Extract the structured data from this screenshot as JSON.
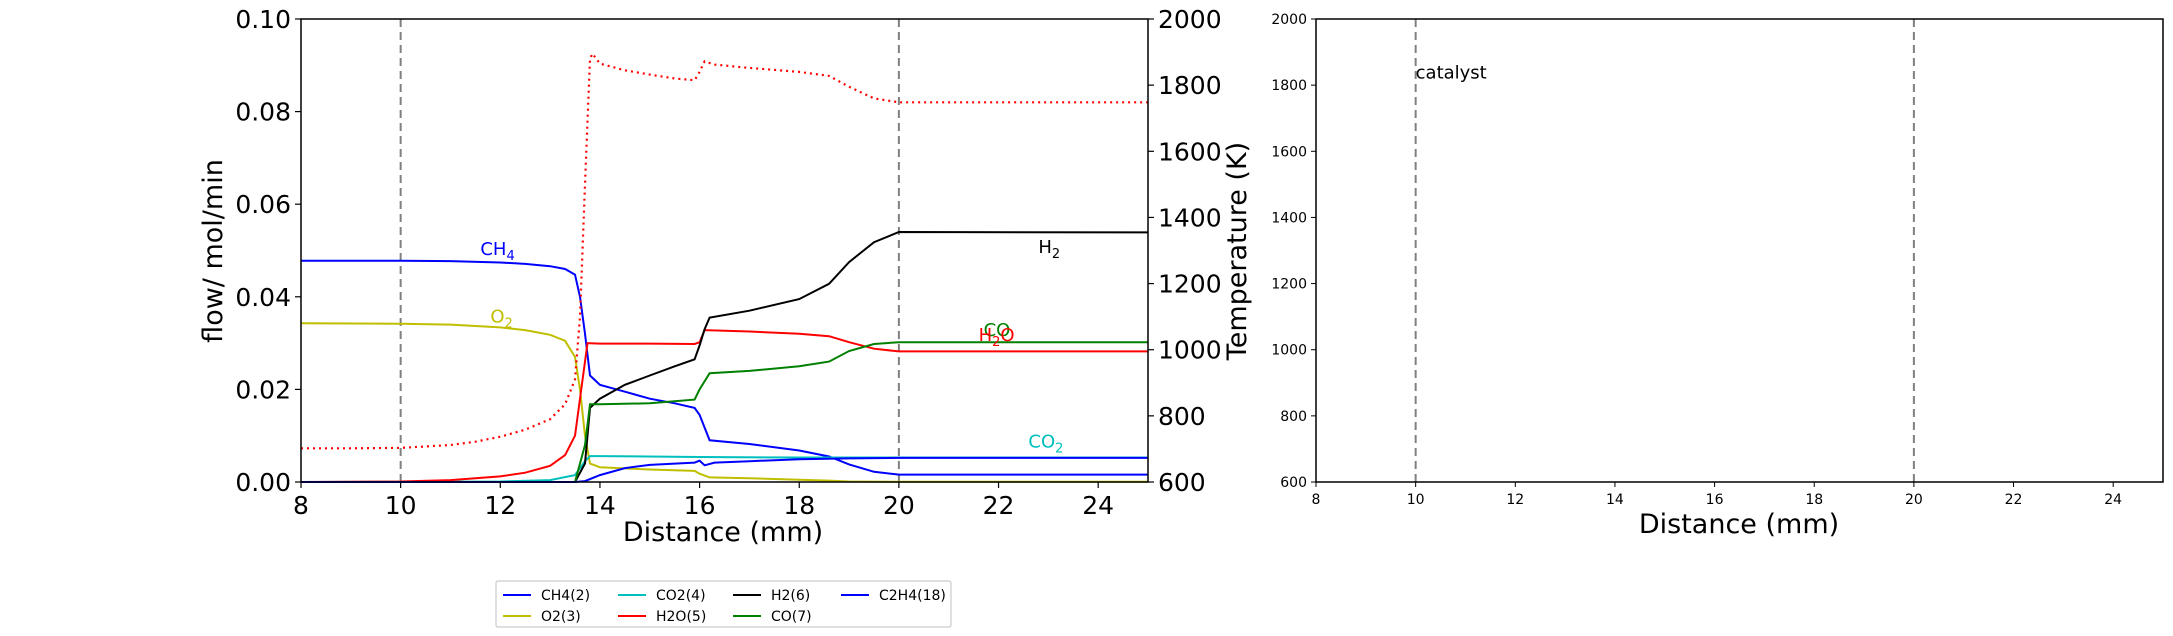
{
  "chart_data": [
    {
      "type": "line",
      "xlabel": "Distance (mm)",
      "ylabel": "flow/ mol/min",
      "y2label": "Temperature (K)",
      "xlim": [
        8,
        25
      ],
      "ylim": [
        0,
        0.1
      ],
      "y2lim": [
        600,
        2000
      ],
      "xticks": [
        "8",
        "10",
        "12",
        "14",
        "16",
        "18",
        "20",
        "22",
        "24"
      ],
      "yticks": [
        "0.00",
        "0.02",
        "0.04",
        "0.06",
        "0.08",
        "0.10"
      ],
      "y2ticks": [
        "600",
        "800",
        "1000",
        "1200",
        "1400",
        "1600",
        "1800",
        "2000"
      ],
      "vlines": [
        10,
        20
      ],
      "grid": false,
      "legend": {
        "placement": "below",
        "entries": [
          "CH4(2)",
          "O2(3)",
          "CO2(4)",
          "H2O(5)",
          "H2(6)",
          "CO(7)",
          "C2H4(18)"
        ]
      },
      "annotations": [
        {
          "base": "CH",
          "sub": "4",
          "x": 11.6,
          "y": 0.049,
          "color": "#0000ff"
        },
        {
          "base": "O",
          "sub": "2",
          "x": 11.8,
          "y": 0.0345,
          "color": "#bfbf00"
        },
        {
          "base": "H",
          "sub": "2",
          "x": 22.8,
          "y": 0.0495,
          "color": "#000000"
        },
        {
          "base": "CO",
          "sub": "",
          "x": 21.7,
          "y": 0.0315,
          "color": "#008000"
        },
        {
          "base": "H",
          "sub": "2",
          "tail": "O",
          "x": 21.6,
          "y": 0.0305,
          "color": "#ff0000"
        },
        {
          "base": "CO",
          "sub": "2",
          "x": 22.6,
          "y": 0.0075,
          "color": "#00bfbf"
        }
      ],
      "series": [
        {
          "name": "CH4(2)",
          "color": "#0000ff",
          "axis": "left",
          "points": [
            [
              8,
              0.0478
            ],
            [
              10,
              0.0478
            ],
            [
              11,
              0.0477
            ],
            [
              12,
              0.0474
            ],
            [
              12.5,
              0.0471
            ],
            [
              13,
              0.0466
            ],
            [
              13.3,
              0.046
            ],
            [
              13.5,
              0.0448
            ],
            [
              13.6,
              0.04
            ],
            [
              13.7,
              0.032
            ],
            [
              13.8,
              0.023
            ],
            [
              14,
              0.021
            ],
            [
              14.5,
              0.0195
            ],
            [
              15,
              0.018
            ],
            [
              15.5,
              0.017
            ],
            [
              15.9,
              0.016
            ],
            [
              16,
              0.0145
            ],
            [
              16.2,
              0.009
            ],
            [
              17,
              0.0082
            ],
            [
              18,
              0.0068
            ],
            [
              18.6,
              0.0055
            ],
            [
              19,
              0.0038
            ],
            [
              19.5,
              0.0022
            ],
            [
              20,
              0.0016
            ],
            [
              25,
              0.0016
            ]
          ]
        },
        {
          "name": "O2(3)",
          "color": "#bfbf00",
          "axis": "left",
          "points": [
            [
              8,
              0.0343
            ],
            [
              10,
              0.0342
            ],
            [
              11,
              0.034
            ],
            [
              12,
              0.0334
            ],
            [
              12.5,
              0.0328
            ],
            [
              13,
              0.0318
            ],
            [
              13.3,
              0.0305
            ],
            [
              13.5,
              0.027
            ],
            [
              13.6,
              0.02
            ],
            [
              13.7,
              0.01
            ],
            [
              13.8,
              0.004
            ],
            [
              14,
              0.0032
            ],
            [
              15,
              0.0027
            ],
            [
              15.9,
              0.0024
            ],
            [
              16,
              0.0018
            ],
            [
              16.2,
              0.001
            ],
            [
              17,
              0.0008
            ],
            [
              18,
              0.0005
            ],
            [
              18.6,
              0.0003
            ],
            [
              19,
              0.0001
            ],
            [
              20,
              5e-05
            ],
            [
              25,
              5e-05
            ]
          ]
        },
        {
          "name": "CO2(4)",
          "color": "#00bfbf",
          "axis": "left",
          "points": [
            [
              8,
              0
            ],
            [
              12,
              0.0001
            ],
            [
              13,
              0.0004
            ],
            [
              13.5,
              0.0015
            ],
            [
              13.7,
              0.0045
            ],
            [
              13.8,
              0.0056
            ],
            [
              14,
              0.0056
            ],
            [
              16,
              0.0054
            ],
            [
              18,
              0.0053
            ],
            [
              20,
              0.0053
            ],
            [
              25,
              0.0053
            ]
          ]
        },
        {
          "name": "H2O(5)",
          "color": "#ff0000",
          "axis": "left",
          "points": [
            [
              8,
              0
            ],
            [
              10,
              0.0001
            ],
            [
              11,
              0.0004
            ],
            [
              12,
              0.0012
            ],
            [
              12.5,
              0.002
            ],
            [
              13,
              0.0035
            ],
            [
              13.3,
              0.0058
            ],
            [
              13.5,
              0.01
            ],
            [
              13.6,
              0.018
            ],
            [
              13.7,
              0.026
            ],
            [
              13.75,
              0.03
            ],
            [
              14,
              0.0299
            ],
            [
              15,
              0.0299
            ],
            [
              15.9,
              0.0298
            ],
            [
              16,
              0.0302
            ],
            [
              16.1,
              0.0328
            ],
            [
              17,
              0.0325
            ],
            [
              18,
              0.032
            ],
            [
              18.6,
              0.0315
            ],
            [
              19,
              0.0302
            ],
            [
              19.5,
              0.0288
            ],
            [
              20,
              0.0282
            ],
            [
              25,
              0.0282
            ]
          ]
        },
        {
          "name": "H2(6)",
          "color": "#000000",
          "axis": "left",
          "points": [
            [
              8,
              0
            ],
            [
              13.5,
              0
            ],
            [
              13.7,
              0.004
            ],
            [
              13.8,
              0.016
            ],
            [
              14,
              0.018
            ],
            [
              14.5,
              0.021
            ],
            [
              15,
              0.023
            ],
            [
              15.5,
              0.025
            ],
            [
              15.9,
              0.0265
            ],
            [
              16,
              0.0295
            ],
            [
              16.1,
              0.033
            ],
            [
              16.2,
              0.0355
            ],
            [
              17,
              0.037
            ],
            [
              18,
              0.0395
            ],
            [
              18.6,
              0.0428
            ],
            [
              19,
              0.0475
            ],
            [
              19.5,
              0.0518
            ],
            [
              20,
              0.054
            ],
            [
              25,
              0.0539
            ]
          ]
        },
        {
          "name": "CO(7)",
          "color": "#008000",
          "axis": "left",
          "points": [
            [
              8,
              0
            ],
            [
              13.5,
              0
            ],
            [
              13.7,
              0.008
            ],
            [
              13.8,
              0.0168
            ],
            [
              14,
              0.0168
            ],
            [
              15,
              0.017
            ],
            [
              15.9,
              0.0178
            ],
            [
              16,
              0.02
            ],
            [
              16.2,
              0.0235
            ],
            [
              17,
              0.024
            ],
            [
              18,
              0.025
            ],
            [
              18.6,
              0.026
            ],
            [
              19,
              0.0283
            ],
            [
              19.5,
              0.0298
            ],
            [
              20,
              0.0302
            ],
            [
              25,
              0.0302
            ]
          ]
        },
        {
          "name": "C2H4(18)",
          "color": "#0000ff",
          "axis": "left",
          "points": [
            [
              8,
              0
            ],
            [
              13.5,
              0
            ],
            [
              13.7,
              0.0002
            ],
            [
              14,
              0.0015
            ],
            [
              14.5,
              0.003
            ],
            [
              15,
              0.0037
            ],
            [
              15.9,
              0.0042
            ],
            [
              16,
              0.0046
            ],
            [
              16.1,
              0.0036
            ],
            [
              16.3,
              0.0042
            ],
            [
              17,
              0.0045
            ],
            [
              18,
              0.0049
            ],
            [
              19,
              0.0051
            ],
            [
              20,
              0.0052
            ],
            [
              25,
              0.0052
            ]
          ]
        },
        {
          "name": "Temperature",
          "color": "#ff0000",
          "axis": "right",
          "style": "dotted",
          "points": [
            [
              8,
              702
            ],
            [
              9,
              702
            ],
            [
              10,
              703
            ],
            [
              11,
              712
            ],
            [
              11.5,
              722
            ],
            [
              12,
              737
            ],
            [
              12.5,
              758
            ],
            [
              13,
              790
            ],
            [
              13.3,
              835
            ],
            [
              13.5,
              910
            ],
            [
              13.6,
              1100
            ],
            [
              13.7,
              1500
            ],
            [
              13.8,
              1880
            ],
            [
              13.85,
              1895
            ],
            [
              14,
              1865
            ],
            [
              14.5,
              1845
            ],
            [
              15,
              1832
            ],
            [
              15.5,
              1820
            ],
            [
              15.9,
              1815
            ],
            [
              16,
              1840
            ],
            [
              16.1,
              1872
            ],
            [
              16.3,
              1862
            ],
            [
              17,
              1852
            ],
            [
              18,
              1840
            ],
            [
              18.6,
              1828
            ],
            [
              19,
              1795
            ],
            [
              19.5,
              1760
            ],
            [
              20,
              1748
            ],
            [
              25,
              1748
            ]
          ]
        }
      ]
    },
    {
      "type": "line",
      "xlabel": "Distance (mm)",
      "ylabel": "",
      "xlim": [
        8,
        25
      ],
      "ylim": [
        600,
        2000
      ],
      "xticks": [
        "8",
        "10",
        "12",
        "14",
        "16",
        "18",
        "20",
        "22",
        "24"
      ],
      "yticks": [
        "600",
        "800",
        "1000",
        "1200",
        "1400",
        "1600",
        "1800",
        "2000"
      ],
      "vlines": [
        10,
        20
      ],
      "annotations": [
        {
          "text": "catalyst",
          "x": 10,
          "y": 1820
        }
      ],
      "series": []
    }
  ]
}
